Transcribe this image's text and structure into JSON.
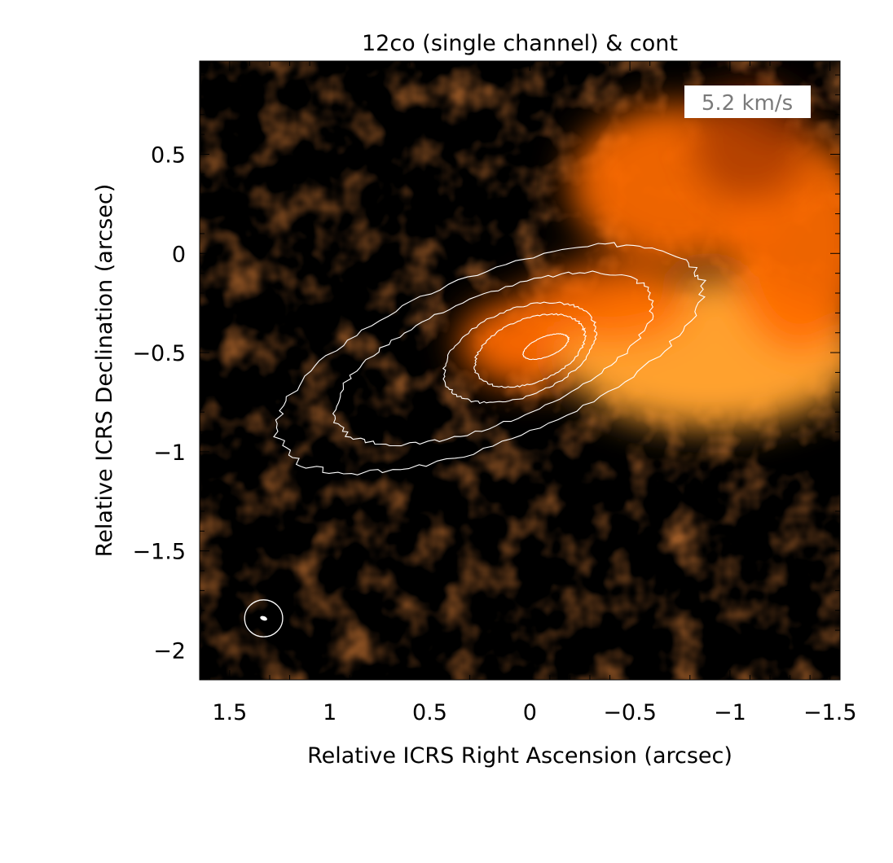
{
  "chart_data": {
    "type": "heatmap",
    "title": "12co (single channel) & cont",
    "xlabel": "Relative ICRS Right Ascension (arcsec)",
    "ylabel": "Relative ICRS Declination (arcsec)",
    "annotation": "5.2 km/s",
    "xlim": [
      1.65,
      -1.55
    ],
    "ylim": [
      -2.15,
      0.97
    ],
    "xticks": [
      1.5,
      1,
      0.5,
      0,
      -0.5,
      -1,
      -1.5
    ],
    "xtick_labels": [
      "1.5",
      "1",
      "0.5",
      "0",
      "−0.5",
      "−1",
      "−1.5"
    ],
    "yticks": [
      -2,
      -1.5,
      -1,
      -0.5,
      0,
      0.5
    ],
    "ytick_labels": [
      "−2",
      "−1.5",
      "−1",
      "−0.5",
      "0",
      "0.5"
    ],
    "grid": false,
    "colormap": [
      "#000000",
      "#3a1405",
      "#a63a00",
      "#ff6a00",
      "#ffa12e"
    ],
    "background_color": "#000000",
    "contour_color": "#ffffff",
    "emission_blobs": [
      {
        "x": 0.0,
        "y": -0.45,
        "rx": 0.35,
        "ry": 0.22,
        "peak": 0.9
      },
      {
        "x": -0.9,
        "y": -0.5,
        "rx": 0.75,
        "ry": 0.38,
        "peak": 1.0
      },
      {
        "x": -0.75,
        "y": 0.35,
        "rx": 0.55,
        "ry": 0.4,
        "peak": 0.85
      },
      {
        "x": -0.4,
        "y": -0.25,
        "rx": 0.4,
        "ry": 0.2,
        "peak": 0.75
      },
      {
        "x": -1.35,
        "y": 0.05,
        "rx": 0.35,
        "ry": 0.55,
        "peak": 0.85
      },
      {
        "x": -1.1,
        "y": 0.55,
        "rx": 0.3,
        "ry": 0.3,
        "peak": 0.55
      }
    ],
    "contours": [
      {
        "x0": 0.2,
        "y0": -0.53,
        "a": 1.13,
        "b": 0.42,
        "pa_deg": 22
      },
      {
        "x0": 0.18,
        "y0": -0.53,
        "a": 0.85,
        "b": 0.32,
        "pa_deg": 22
      },
      {
        "x0": 0.05,
        "y0": -0.5,
        "a": 0.4,
        "b": 0.22,
        "pa_deg": 22
      },
      {
        "x0": 0.0,
        "y0": -0.49,
        "a": 0.29,
        "b": 0.16,
        "pa_deg": 22
      },
      {
        "x0": -0.08,
        "y0": -0.47,
        "a": 0.12,
        "b": 0.05,
        "pa_deg": 22
      }
    ],
    "beam": {
      "x": 1.33,
      "y": -1.84,
      "major": 0.1,
      "minor": 0.085
    }
  }
}
